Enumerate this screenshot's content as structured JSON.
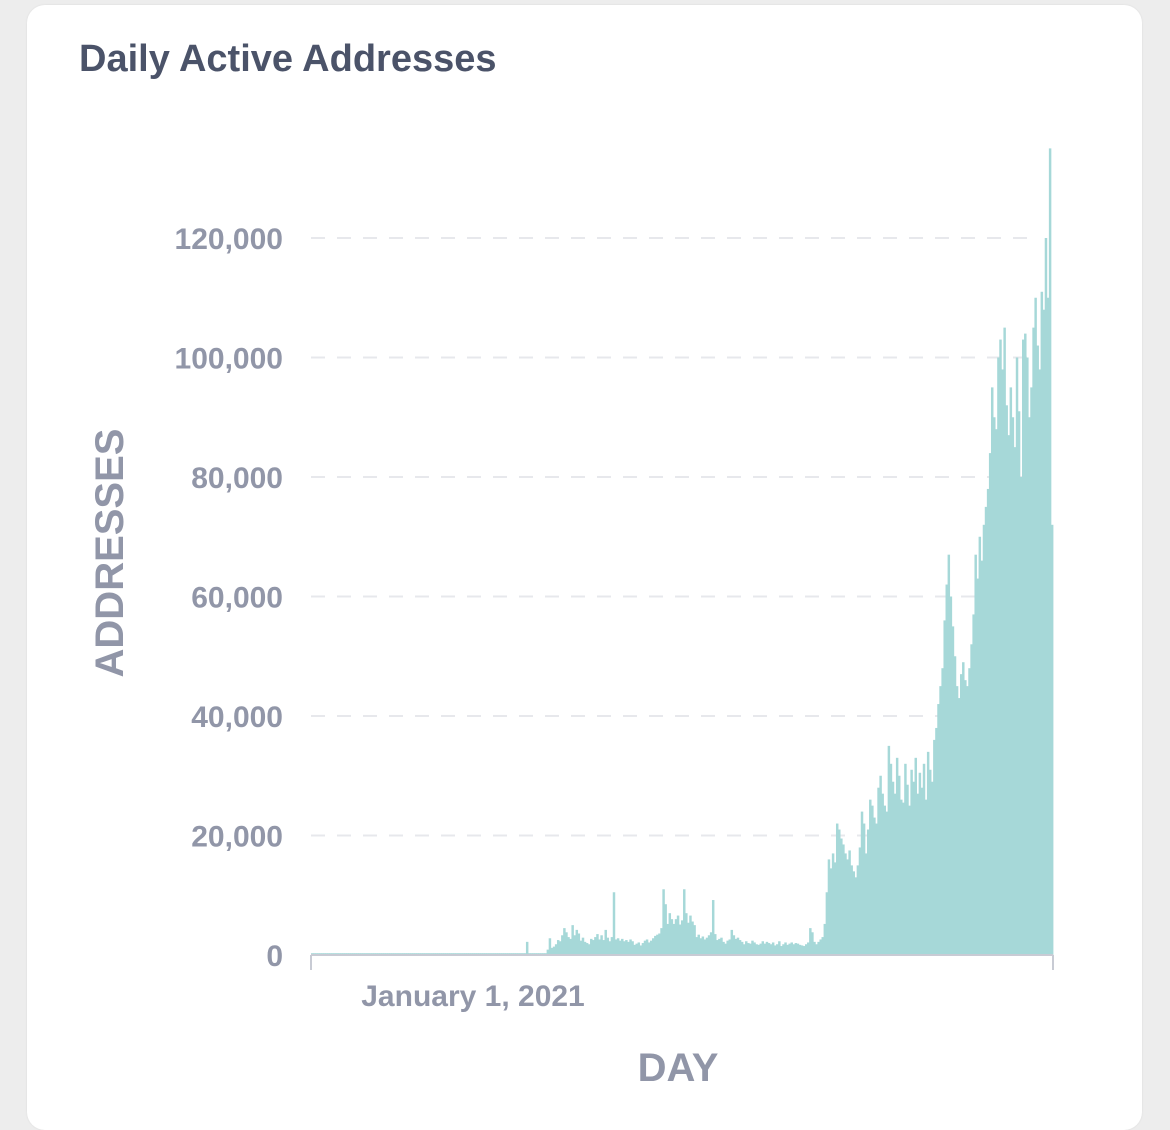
{
  "card": {
    "title": "Daily Active Addresses"
  },
  "chart_data": {
    "type": "bar",
    "title": "Daily Active Addresses",
    "xlabel": "DAY",
    "ylabel": "ADDRESSES",
    "ylim": [
      0,
      135000
    ],
    "y_ticks": [
      "0",
      "20,000",
      "40,000",
      "60,000",
      "80,000",
      "100,000",
      "120,000"
    ],
    "y_tick_values": [
      0,
      20000,
      40000,
      60000,
      80000,
      100000,
      120000
    ],
    "x_ticks": [
      "January 1, 2021"
    ],
    "grid": true,
    "bar_color": "#a6d8d8",
    "series": [
      {
        "values": [
          300,
          300,
          300,
          300,
          300,
          300,
          300,
          300,
          300,
          300,
          300,
          300,
          300,
          300,
          300,
          300,
          300,
          300,
          300,
          300,
          300,
          300,
          300,
          300,
          300,
          300,
          300,
          300,
          300,
          300,
          300,
          300,
          300,
          300,
          300,
          300,
          300,
          300,
          300,
          300,
          300,
          300,
          300,
          300,
          300,
          300,
          300,
          300,
          300,
          300,
          300,
          300,
          300,
          300,
          300,
          300,
          300,
          300,
          300,
          300,
          300,
          300,
          300,
          300,
          300,
          300,
          300,
          300,
          300,
          300,
          300,
          300,
          300,
          300,
          300,
          300,
          300,
          300,
          300,
          300,
          300,
          300,
          300,
          300,
          300,
          300,
          300,
          300,
          300,
          300,
          300,
          300,
          300,
          300,
          300,
          300,
          300,
          300,
          300,
          300,
          300,
          300,
          300,
          300,
          2200,
          300,
          300,
          300,
          300,
          300,
          300,
          300,
          300,
          300,
          900,
          2800,
          1200,
          1400,
          1800,
          2500,
          2300,
          3300,
          4500,
          3800,
          3000,
          2700,
          5000,
          3300,
          4200,
          3600,
          2400,
          2900,
          2200,
          2000,
          1800,
          2700,
          2500,
          3000,
          3500,
          2600,
          3300,
          2500,
          4200,
          2900,
          2300,
          3000,
          10500,
          2600,
          2800,
          2400,
          2700,
          2300,
          2500,
          2200,
          2600,
          2300,
          1700,
          1900,
          2100,
          1600,
          2000,
          2400,
          2600,
          2100,
          2400,
          2800,
          3200,
          3400,
          3600,
          4500,
          11000,
          8500,
          5200,
          7000,
          6000,
          5200,
          6000,
          6600,
          5100,
          5800,
          11000,
          7000,
          5400,
          6600,
          5600,
          5000,
          3000,
          3400,
          2800,
          3100,
          2600,
          2900,
          3300,
          3800,
          9200,
          3500,
          2500,
          2700,
          2900,
          2200,
          1900,
          2400,
          2600,
          4200,
          3300,
          2700,
          2900,
          2500,
          2200,
          1800,
          2300,
          2000,
          1900,
          2400,
          2100,
          1800,
          1700,
          1900,
          2300,
          1900,
          2200,
          2000,
          1800,
          2100,
          1600,
          1800,
          2300,
          1500,
          1800,
          2100,
          1700,
          1900,
          2100,
          1800,
          2000,
          1900,
          1700,
          1600,
          1500,
          1800,
          2100,
          4500,
          3800,
          2200,
          1800,
          2200,
          2600,
          3000,
          5200,
          10500,
          16000,
          14500,
          17000,
          15500,
          22000,
          21000,
          19500,
          18500,
          17000,
          16000,
          17500,
          15000,
          14000,
          13000,
          15000,
          18000,
          24000,
          22000,
          17000,
          21000,
          26000,
          25000,
          23000,
          22000,
          28000,
          30000,
          27000,
          25000,
          24000,
          35000,
          32000,
          29000,
          27000,
          33000,
          30000,
          26000,
          25500,
          32000,
          28500,
          25000,
          31000,
          29000,
          33000,
          27000,
          30500,
          28000,
          32000,
          26000,
          34000,
          31000,
          29000,
          36000,
          38000,
          42000,
          45000,
          48000,
          56000,
          62000,
          67000,
          60000,
          55000,
          50000,
          45000,
          43000,
          47000,
          49000,
          46000,
          45000,
          48000,
          52000,
          57000,
          67000,
          63000,
          70000,
          66000,
          72000,
          75000,
          78000,
          84000,
          95000,
          90000,
          88000,
          100000,
          103000,
          98000,
          105000,
          92000,
          87000,
          95000,
          90000,
          85000,
          100000,
          91000,
          80000,
          103000,
          104000,
          100000,
          90000,
          95000,
          105000,
          110000,
          102000,
          98000,
          111000,
          108000,
          120000,
          110000,
          135000,
          72000
        ]
      }
    ]
  }
}
